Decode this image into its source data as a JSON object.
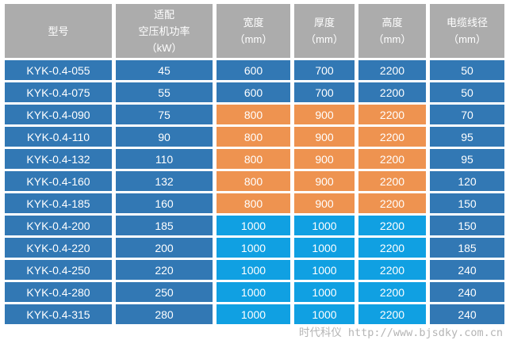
{
  "colors": {
    "background": "#FFFFFF",
    "header_bg": "#ACACAC",
    "header_text": "#FFFFFF",
    "steel_blue": "#3278B4",
    "orange": "#EE9350",
    "sky_blue": "#10A0E2",
    "cell_text": "#FFFFFF",
    "footer_text": "#B5B5B5"
  },
  "chart_data": {
    "type": "table",
    "columns": [
      "型号",
      "适配\n空压机功率\n（kW）",
      "宽度\n（mm）",
      "厚度\n（mm）",
      "高度\n（mm）",
      "电缆线径\n（mm）"
    ],
    "rows": [
      {
        "cells": [
          {
            "text": "KYK-0.4-055",
            "color": "steel"
          },
          {
            "text": "45",
            "color": "steel"
          },
          {
            "text": "600",
            "color": "steel"
          },
          {
            "text": "700",
            "color": "steel"
          },
          {
            "text": "2200",
            "color": "steel"
          },
          {
            "text": "50",
            "color": "steel"
          }
        ]
      },
      {
        "cells": [
          {
            "text": "KYK-0.4-075",
            "color": "steel"
          },
          {
            "text": "55",
            "color": "steel"
          },
          {
            "text": "600",
            "color": "steel"
          },
          {
            "text": "700",
            "color": "steel"
          },
          {
            "text": "2200",
            "color": "steel"
          },
          {
            "text": "50",
            "color": "steel"
          }
        ]
      },
      {
        "cells": [
          {
            "text": "KYK-0.4-090",
            "color": "steel"
          },
          {
            "text": "75",
            "color": "steel"
          },
          {
            "text": "800",
            "color": "orange"
          },
          {
            "text": "900",
            "color": "orange"
          },
          {
            "text": "2200",
            "color": "orange"
          },
          {
            "text": "70",
            "color": "steel"
          }
        ]
      },
      {
        "cells": [
          {
            "text": "KYK-0.4-110",
            "color": "steel"
          },
          {
            "text": "90",
            "color": "steel"
          },
          {
            "text": "800",
            "color": "orange"
          },
          {
            "text": "900",
            "color": "orange"
          },
          {
            "text": "2200",
            "color": "orange"
          },
          {
            "text": "95",
            "color": "steel"
          }
        ]
      },
      {
        "cells": [
          {
            "text": "KYK-0.4-132",
            "color": "steel"
          },
          {
            "text": "110",
            "color": "steel"
          },
          {
            "text": "800",
            "color": "orange"
          },
          {
            "text": "900",
            "color": "orange"
          },
          {
            "text": "2200",
            "color": "orange"
          },
          {
            "text": "95",
            "color": "steel"
          }
        ]
      },
      {
        "cells": [
          {
            "text": "KYK-0.4-160",
            "color": "steel"
          },
          {
            "text": "132",
            "color": "steel"
          },
          {
            "text": "800",
            "color": "orange"
          },
          {
            "text": "900",
            "color": "orange"
          },
          {
            "text": "2200",
            "color": "orange"
          },
          {
            "text": "120",
            "color": "steel"
          }
        ]
      },
      {
        "cells": [
          {
            "text": "KYK-0.4-185",
            "color": "steel"
          },
          {
            "text": "160",
            "color": "steel"
          },
          {
            "text": "800",
            "color": "orange"
          },
          {
            "text": "900",
            "color": "orange"
          },
          {
            "text": "2200",
            "color": "orange"
          },
          {
            "text": "150",
            "color": "steel"
          }
        ]
      },
      {
        "cells": [
          {
            "text": "KYK-0.4-200",
            "color": "steel"
          },
          {
            "text": "185",
            "color": "steel"
          },
          {
            "text": "1000",
            "color": "sky"
          },
          {
            "text": "1000",
            "color": "sky"
          },
          {
            "text": "2200",
            "color": "sky"
          },
          {
            "text": "150",
            "color": "steel"
          }
        ]
      },
      {
        "cells": [
          {
            "text": "KYK-0.4-220",
            "color": "steel"
          },
          {
            "text": "200",
            "color": "steel"
          },
          {
            "text": "1000",
            "color": "sky"
          },
          {
            "text": "1000",
            "color": "sky"
          },
          {
            "text": "2200",
            "color": "sky"
          },
          {
            "text": "185",
            "color": "steel"
          }
        ]
      },
      {
        "cells": [
          {
            "text": "KYK-0.4-250",
            "color": "steel"
          },
          {
            "text": "220",
            "color": "steel"
          },
          {
            "text": "1000",
            "color": "sky"
          },
          {
            "text": "1000",
            "color": "sky"
          },
          {
            "text": "2200",
            "color": "sky"
          },
          {
            "text": "240",
            "color": "steel"
          }
        ]
      },
      {
        "cells": [
          {
            "text": "KYK-0.4-280",
            "color": "steel"
          },
          {
            "text": "250",
            "color": "steel"
          },
          {
            "text": "1000",
            "color": "sky"
          },
          {
            "text": "1000",
            "color": "sky"
          },
          {
            "text": "2200",
            "color": "sky"
          },
          {
            "text": "240",
            "color": "steel"
          }
        ]
      },
      {
        "cells": [
          {
            "text": "KYK-0.4-315",
            "color": "steel"
          },
          {
            "text": "280",
            "color": "steel"
          },
          {
            "text": "1000",
            "color": "sky"
          },
          {
            "text": "1000",
            "color": "sky"
          },
          {
            "text": "2200",
            "color": "sky"
          },
          {
            "text": "240",
            "color": "steel"
          }
        ]
      }
    ]
  },
  "footer": {
    "brand": "时代科仪",
    "url": "http://www.bjsdky.com.cn"
  }
}
